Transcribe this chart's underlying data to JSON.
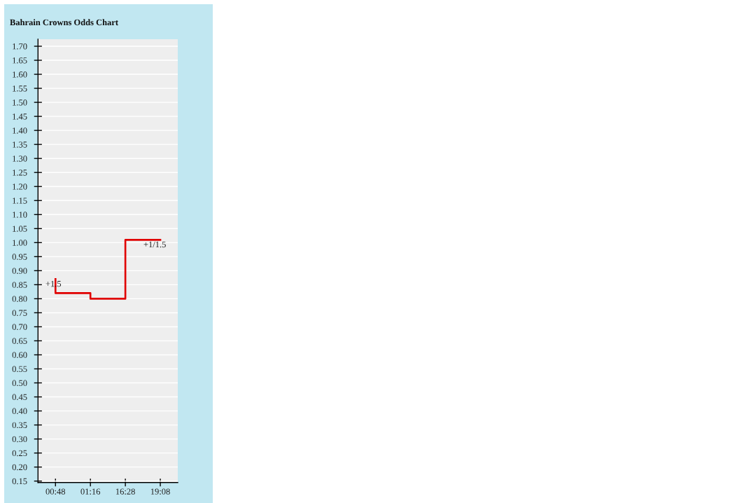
{
  "chart_data": {
    "type": "step",
    "title": "Bahrain Crowns Odds Chart",
    "categories": [
      "00:48",
      "01:16",
      "16:28",
      "19:08"
    ],
    "series": [
      {
        "color": "#e00000",
        "values": [
          0.87,
          0.82,
          0.8,
          1.01
        ]
      }
    ],
    "line_style": "solid",
    "ylim": [
      0.145,
      1.725
    ],
    "yticks": [
      {
        "value": 0.15,
        "label": "0.15"
      },
      {
        "value": 0.2,
        "label": "0.20"
      },
      {
        "value": 0.25,
        "label": "0.25"
      },
      {
        "value": 0.3,
        "label": "0.30"
      },
      {
        "value": 0.35,
        "label": "0.35"
      },
      {
        "value": 0.4,
        "label": "0.40"
      },
      {
        "value": 0.45,
        "label": "0.45"
      },
      {
        "value": 0.5,
        "label": "0.50"
      },
      {
        "value": 0.55,
        "label": "0.55"
      },
      {
        "value": 0.6,
        "label": "0.60"
      },
      {
        "value": 0.65,
        "label": "0.65"
      },
      {
        "value": 0.7,
        "label": "0.70"
      },
      {
        "value": 0.75,
        "label": "0.75"
      },
      {
        "value": 0.8,
        "label": "0.80"
      },
      {
        "value": 0.85,
        "label": "0.85"
      },
      {
        "value": 0.9,
        "label": "0.90"
      },
      {
        "value": 0.95,
        "label": "0.95"
      },
      {
        "value": 1.0,
        "label": "1.00"
      },
      {
        "value": 1.05,
        "label": "1.05"
      },
      {
        "value": 1.1,
        "label": "1.10"
      },
      {
        "value": 1.15,
        "label": "1.15"
      },
      {
        "value": 1.2,
        "label": "1.20"
      },
      {
        "value": 1.25,
        "label": "1.25"
      },
      {
        "value": 1.3,
        "label": "1.30"
      },
      {
        "value": 1.35,
        "label": "1.35"
      },
      {
        "value": 1.4,
        "label": "1.40"
      },
      {
        "value": 1.45,
        "label": "1.45"
      },
      {
        "value": 1.5,
        "label": "1.50"
      },
      {
        "value": 1.55,
        "label": "1.55"
      },
      {
        "value": 1.6,
        "label": "1.60"
      },
      {
        "value": 1.65,
        "label": "1.65"
      },
      {
        "value": 1.7,
        "label": "1.70"
      }
    ],
    "grid": "y",
    "annotations": [
      {
        "text": "+1.5",
        "x": "00:48",
        "y": 0.87
      },
      {
        "text": "+1/1.5",
        "x": "19:08",
        "y": 1.01
      }
    ]
  }
}
